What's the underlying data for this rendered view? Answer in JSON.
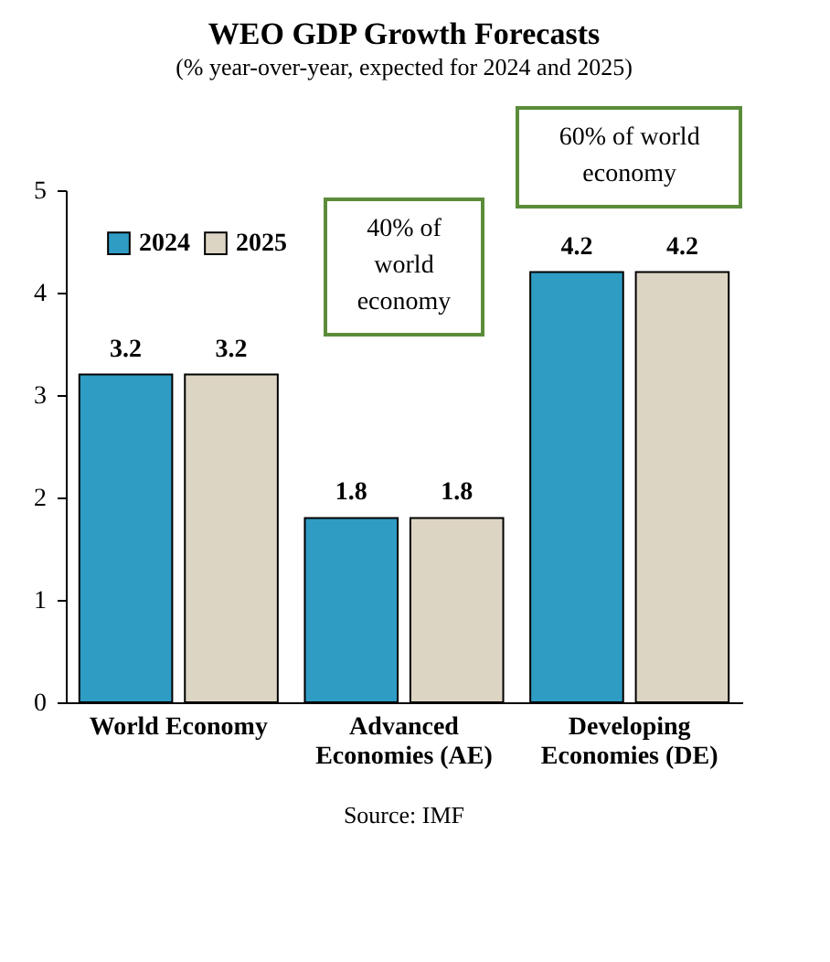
{
  "chart_data": {
    "type": "bar",
    "title": "WEO GDP Growth Forecasts",
    "subtitle": "(% year-over-year, expected for 2024 and 2025)",
    "categories": [
      "World Economy",
      "Advanced Economies (AE)",
      "Developing Economies (DE)"
    ],
    "series": [
      {
        "name": "2024",
        "color": "#2f9cc4",
        "values": [
          3.2,
          1.8,
          4.2
        ]
      },
      {
        "name": "2025",
        "color": "#ddd5c3",
        "values": [
          3.2,
          1.8,
          4.2
        ]
      }
    ],
    "ylim": [
      0,
      5
    ],
    "yticks": [
      0,
      1,
      2,
      3,
      4,
      5
    ],
    "grid": false,
    "legend": "top left",
    "data_labels": true,
    "annotations": [
      "40% of world economy",
      "60% of world economy",
      "Source: IMF"
    ]
  }
}
